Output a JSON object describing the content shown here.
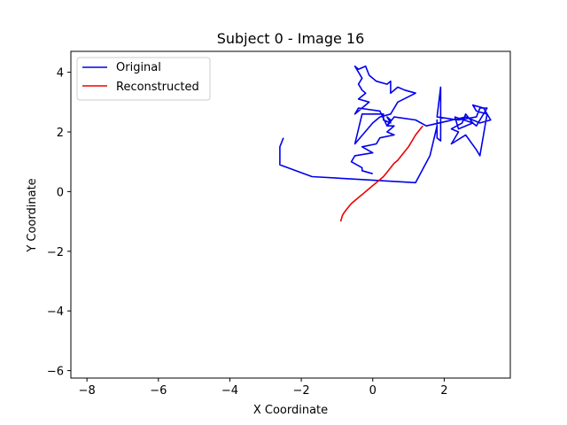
{
  "chart_data": {
    "type": "line",
    "title": "Subject 0 - Image 16",
    "xlabel": "X Coordinate",
    "ylabel": "Y Coordinate",
    "xlim": [
      -8.45,
      3.85
    ],
    "ylim": [
      -6.25,
      4.7
    ],
    "xticks": [
      -8,
      -6,
      -4,
      -2,
      0,
      2
    ],
    "yticks": [
      -6,
      -4,
      -2,
      0,
      2,
      4
    ],
    "xtick_labels": [
      "−8",
      "−6",
      "−4",
      "−2",
      "0",
      "2"
    ],
    "ytick_labels": [
      "−6",
      "−4",
      "−2",
      "0",
      "2",
      "4"
    ],
    "grid": false,
    "legend": "upper-left",
    "series": [
      {
        "name": "Original",
        "color": "#0000ee",
        "x": [
          -2.5,
          -2.6,
          -2.6,
          -1.7,
          1.2,
          1.6,
          1.8,
          1.9,
          1.9,
          1.8,
          1.8,
          1.8,
          2.1,
          2.4,
          2.7,
          2.5,
          2.7,
          2.9,
          3.0,
          3.2,
          3.0,
          3.1,
          2.9,
          2.8,
          2.6,
          2.4,
          2.2,
          2.2,
          2.3,
          2.6,
          2.6,
          2.5,
          2.4,
          2.9,
          3.0,
          3.2,
          3.0,
          3.1,
          3.1,
          3.0,
          3.3,
          2.8,
          1.5,
          1.2,
          0.9,
          0.4,
          0.2,
          0.0,
          -0.2,
          -0.3,
          -0.1,
          0.5,
          0.5,
          0.4,
          -0.2,
          -0.4,
          0.0,
          -0.2,
          0.0,
          -0.3,
          -0.4,
          -0.5,
          -0.3,
          -0.2,
          -0.4,
          -0.5,
          -0.5,
          -0.4,
          -0.3,
          -0.2,
          0.0,
          0.2,
          0.4,
          -0.5,
          -0.4,
          1.0,
          1.5,
          1.8,
          1.6,
          1.4,
          1.2,
          1.0,
          0.7,
          0.6,
          0.5,
          0.5,
          0.4,
          0.5,
          0.5,
          0.4,
          0.4,
          0.5,
          0.5,
          0.7,
          1.0,
          1.1,
          1.2,
          1.1,
          1.1,
          1.2,
          1.4,
          1.7,
          1.9,
          2.3,
          2.4,
          2.4,
          2.3,
          2.4,
          2.5,
          2.6,
          2.4,
          2.4,
          2.5,
          2.4,
          2.3,
          2.2,
          2.0,
          1.9,
          2.1,
          2.0,
          1.9,
          1.7,
          1.9,
          2.0,
          2.3,
          2.5,
          2.4,
          2.3,
          2.4
        ],
        "y": [
          1.8,
          1.5,
          0.9,
          0.5,
          0.3,
          1.2,
          2.3,
          2.4,
          3.5,
          2.5,
          2.4,
          2.0,
          2.4,
          2.3,
          2.4,
          2.6,
          2.8,
          2.8,
          2.7,
          2.4,
          2.2,
          2.5,
          2.6,
          2.7,
          2.4,
          2.6,
          2.4,
          2.3,
          2.2,
          2.3,
          2.1,
          1.9,
          2.0,
          1.6,
          1.4,
          1.2,
          2.6,
          2.6,
          2.8,
          2.7,
          2.4,
          2.3,
          2.2,
          2.4,
          2.4,
          2.6,
          2.7,
          2.5,
          2.6,
          2.5,
          2.7,
          2.8,
          2.6,
          3.0,
          2.8,
          3.1,
          3.0,
          3.3,
          3.4,
          3.6,
          3.7,
          3.8,
          4.0,
          3.9,
          4.1,
          4.2,
          4.0,
          3.9,
          3.6,
          3.7,
          3.5,
          3.4,
          3.3,
          2.6,
          2.3,
          1.6,
          2.2,
          2.2,
          2.4,
          2.6,
          2.7,
          2.8,
          2.5,
          2.4,
          2.4,
          2.5,
          2.3,
          2.2,
          2.1,
          2.4,
          2.6,
          2.4,
          2.2,
          2.1,
          1.9,
          1.7,
          1.4,
          1.3,
          1.1,
          1.0,
          1.0,
          1.2,
          1.2,
          1.3,
          1.3,
          1.4,
          1.3,
          1.2,
          1.1,
          1.0,
          1.1,
          1.1,
          1.0,
          0.9,
          0.9,
          0.9,
          0.8,
          0.7,
          0.7,
          0.6,
          0.5,
          0.4,
          0.3,
          0.2,
          0.2,
          0.1,
          0.0,
          -0.1,
          -0.2
        ],
        "segments": [
          {
            "x": [
              -2.5,
              -2.6,
              -2.6,
              -1.7,
              1.2,
              1.6,
              1.8,
              1.8,
              1.8,
              1.9,
              1.9,
              1.8,
              2.4,
              2.9,
              3.0,
              3.2,
              2.9,
              2.8,
              2.3,
              2.4,
              2.8,
              2.6,
              2.5,
              2.2,
              2.4,
              2.2,
              2.6,
              2.9,
              3.0,
              3.2,
              2.9,
              2.8,
              3.1,
              3.3,
              3.0,
              2.6,
              1.5,
              1.2,
              0.6,
              0.4,
              0.2,
              -0.4,
              -0.5,
              -0.1,
              -0.4,
              -0.2,
              -0.3,
              -0.4,
              -0.3,
              -0.5,
              -0.4,
              -0.2,
              -0.1,
              0.1,
              0.4,
              0.5,
              0.5,
              0.7,
              0.9,
              1.2,
              0.7,
              0.5,
              0.2,
              0.0,
              -0.5,
              -0.3,
              0.3,
              0.3,
              0.5,
              0.4,
              0.5,
              0.4,
              0.6,
              0.5,
              0.4,
              0.6,
              0.2,
              0.1,
              -0.3,
              0.0,
              -0.5,
              -0.6,
              -0.3,
              -0.3,
              0.0
            ],
            "y": [
              1.8,
              1.5,
              0.9,
              0.5,
              0.3,
              1.2,
              2.2,
              2.4,
              1.8,
              1.7,
              3.5,
              2.5,
              2.4,
              2.5,
              2.8,
              2.8,
              2.2,
              2.3,
              2.5,
              2.1,
              2.3,
              2.6,
              2.3,
              2.1,
              2.0,
              1.6,
              1.9,
              1.4,
              1.2,
              2.6,
              2.7,
              2.9,
              2.8,
              2.4,
              2.3,
              2.5,
              2.2,
              2.4,
              2.5,
              2.2,
              2.7,
              2.8,
              2.6,
              3.0,
              3.1,
              3.3,
              3.4,
              3.6,
              3.8,
              4.2,
              4.1,
              4.2,
              3.9,
              3.7,
              3.6,
              3.7,
              3.3,
              3.5,
              3.4,
              3.3,
              3.0,
              2.6,
              2.5,
              2.3,
              1.6,
              2.6,
              2.6,
              2.4,
              2.3,
              2.5,
              2.4,
              2.2,
              2.2,
              2.1,
              2.0,
              1.9,
              1.8,
              1.6,
              1.5,
              1.3,
              1.2,
              1.0,
              0.8,
              0.7,
              0.6
            ]
          }
        ]
      },
      {
        "name": "Reconstructed",
        "color": "#ee0000",
        "x": [
          1.4,
          1.3,
          1.2,
          1.1,
          1.0,
          0.9,
          0.8,
          0.7,
          0.6,
          0.5,
          0.4,
          0.3,
          0.2,
          0.1,
          0.0,
          -0.1,
          -0.2,
          -0.3,
          -0.4,
          -0.5,
          -0.6,
          -0.7,
          -0.8,
          -0.85,
          -0.9
        ],
        "y": [
          2.2,
          2.05,
          1.9,
          1.7,
          1.5,
          1.35,
          1.2,
          1.05,
          0.95,
          0.8,
          0.65,
          0.5,
          0.4,
          0.3,
          0.2,
          0.1,
          0.0,
          -0.1,
          -0.2,
          -0.3,
          -0.4,
          -0.55,
          -0.7,
          -0.8,
          -1.0
        ]
      }
    ]
  },
  "legend": {
    "items": [
      {
        "label": "Original",
        "color": "#0000ee"
      },
      {
        "label": "Reconstructed",
        "color": "#ee0000"
      }
    ]
  }
}
